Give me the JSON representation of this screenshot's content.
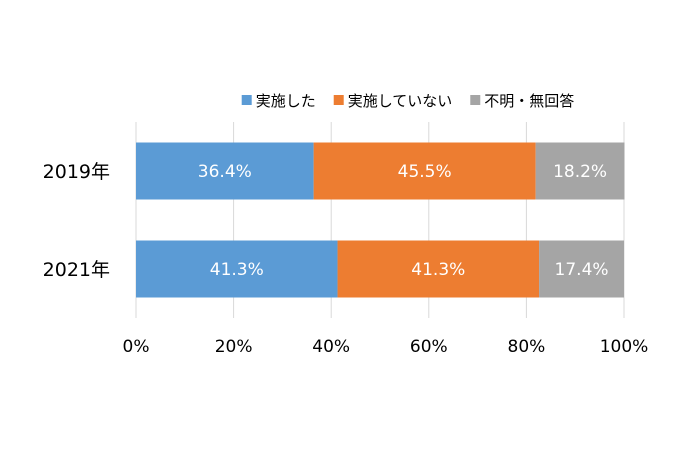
{
  "chart_data": {
    "type": "bar",
    "orientation": "horizontal",
    "stacked": true,
    "normalized_percent": true,
    "categories": [
      "2019年",
      "2021年"
    ],
    "series": [
      {
        "name": "実施した",
        "values": [
          36.4,
          41.3
        ],
        "labels": [
          "36.4%",
          "41.3%"
        ],
        "color": "#5b9bd5"
      },
      {
        "name": "実施していない",
        "values": [
          45.5,
          41.3
        ],
        "labels": [
          "45.5%",
          "41.3%"
        ],
        "color": "#ed7d31"
      },
      {
        "name": "不明・無回答",
        "values": [
          18.2,
          17.4
        ],
        "labels": [
          "18.2%",
          "17.4%"
        ],
        "color": "#a5a5a5"
      }
    ],
    "xlim": [
      0,
      100
    ],
    "x_ticks": [
      0,
      20,
      40,
      60,
      80,
      100
    ],
    "x_tick_labels": [
      "0%",
      "20%",
      "40%",
      "60%",
      "80%",
      "100%"
    ],
    "grid": "vertical",
    "legend_position": "top",
    "data_label_color": "#ffffff",
    "grid_color": "#d9d9d9",
    "text_color": "#000000"
  }
}
